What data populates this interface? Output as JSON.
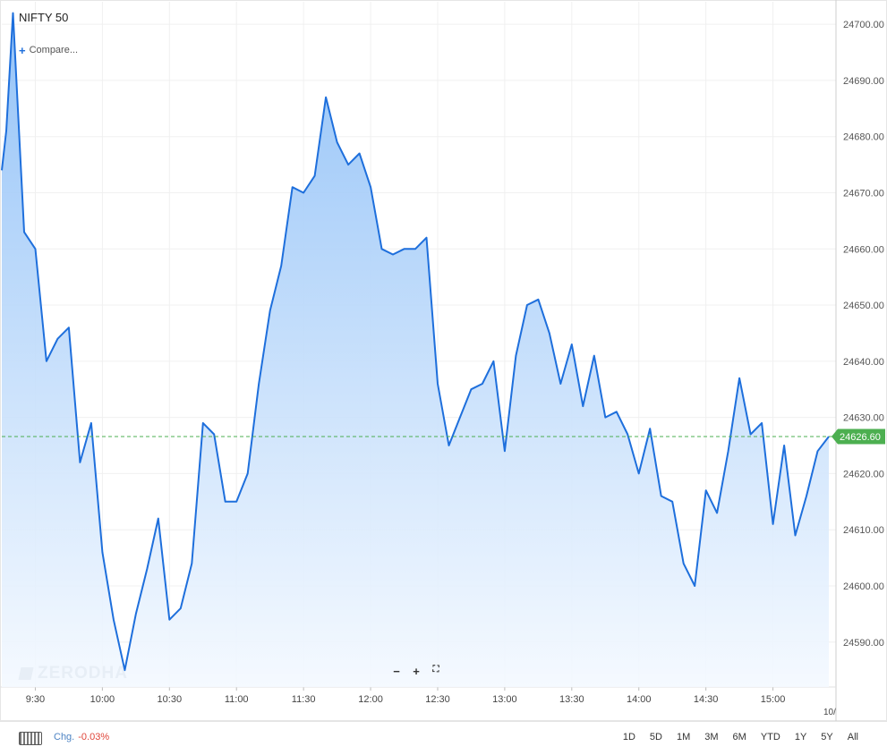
{
  "header": {
    "title": "NIFTY 50",
    "compare_label": "Compare..."
  },
  "watermark": "ZERODHA",
  "zoom_controls": [
    "−",
    "+",
    "⛶"
  ],
  "footer": {
    "chg_label": "Chg.",
    "chg_value": "-0.03%",
    "ranges": [
      "1D",
      "5D",
      "1M",
      "3M",
      "6M",
      "YTD",
      "1Y",
      "5Y",
      "All"
    ]
  },
  "colors": {
    "line": "#1e6fdc",
    "fill_top": "#8fc0f7",
    "fill_bottom": "#f4f9ff",
    "last_price": "#4caf50",
    "grid": "#f0f0f0",
    "change_negative": "#e0453a"
  },
  "chart_data": {
    "type": "area",
    "series": [
      {
        "values": [
          {
            "t": "9:15",
            "y": 24674
          },
          {
            "t": "9:17",
            "y": 24681
          },
          {
            "t": "9:20",
            "y": 24702
          },
          {
            "t": "9:25",
            "y": 24663
          },
          {
            "t": "9:30",
            "y": 24660
          },
          {
            "t": "9:35",
            "y": 24640
          },
          {
            "t": "9:40",
            "y": 24644
          },
          {
            "t": "9:45",
            "y": 24646
          },
          {
            "t": "9:50",
            "y": 24622
          },
          {
            "t": "9:55",
            "y": 24629
          },
          {
            "t": "10:00",
            "y": 24606
          },
          {
            "t": "10:05",
            "y": 24594
          },
          {
            "t": "10:10",
            "y": 24585
          },
          {
            "t": "10:15",
            "y": 24595
          },
          {
            "t": "10:20",
            "y": 24603
          },
          {
            "t": "10:25",
            "y": 24612
          },
          {
            "t": "10:30",
            "y": 24594
          },
          {
            "t": "10:35",
            "y": 24596
          },
          {
            "t": "10:40",
            "y": 24604
          },
          {
            "t": "10:45",
            "y": 24629
          },
          {
            "t": "10:50",
            "y": 24627
          },
          {
            "t": "10:55",
            "y": 24615
          },
          {
            "t": "11:00",
            "y": 24615
          },
          {
            "t": "11:05",
            "y": 24620
          },
          {
            "t": "11:10",
            "y": 24636
          },
          {
            "t": "11:15",
            "y": 24649
          },
          {
            "t": "11:20",
            "y": 24657
          },
          {
            "t": "11:25",
            "y": 24671
          },
          {
            "t": "11:30",
            "y": 24670
          },
          {
            "t": "11:35",
            "y": 24673
          },
          {
            "t": "11:40",
            "y": 24687
          },
          {
            "t": "11:45",
            "y": 24679
          },
          {
            "t": "11:50",
            "y": 24675
          },
          {
            "t": "11:55",
            "y": 24677
          },
          {
            "t": "12:00",
            "y": 24671
          },
          {
            "t": "12:05",
            "y": 24660
          },
          {
            "t": "12:10",
            "y": 24659
          },
          {
            "t": "12:15",
            "y": 24660
          },
          {
            "t": "12:20",
            "y": 24660
          },
          {
            "t": "12:25",
            "y": 24662
          },
          {
            "t": "12:30",
            "y": 24636
          },
          {
            "t": "12:35",
            "y": 24625
          },
          {
            "t": "12:40",
            "y": 24630
          },
          {
            "t": "12:45",
            "y": 24635
          },
          {
            "t": "12:50",
            "y": 24636
          },
          {
            "t": "12:55",
            "y": 24640
          },
          {
            "t": "13:00",
            "y": 24624
          },
          {
            "t": "13:05",
            "y": 24641
          },
          {
            "t": "13:10",
            "y": 24650
          },
          {
            "t": "13:15",
            "y": 24651
          },
          {
            "t": "13:20",
            "y": 24645
          },
          {
            "t": "13:25",
            "y": 24636
          },
          {
            "t": "13:30",
            "y": 24643
          },
          {
            "t": "13:35",
            "y": 24632
          },
          {
            "t": "13:40",
            "y": 24641
          },
          {
            "t": "13:45",
            "y": 24630
          },
          {
            "t": "13:50",
            "y": 24631
          },
          {
            "t": "13:55",
            "y": 24627
          },
          {
            "t": "14:00",
            "y": 24620
          },
          {
            "t": "14:05",
            "y": 24628
          },
          {
            "t": "14:10",
            "y": 24616
          },
          {
            "t": "14:15",
            "y": 24615
          },
          {
            "t": "14:20",
            "y": 24604
          },
          {
            "t": "14:25",
            "y": 24600
          },
          {
            "t": "14:30",
            "y": 24617
          },
          {
            "t": "14:35",
            "y": 24613
          },
          {
            "t": "14:40",
            "y": 24624
          },
          {
            "t": "14:45",
            "y": 24637
          },
          {
            "t": "14:50",
            "y": 24627
          },
          {
            "t": "14:55",
            "y": 24629
          },
          {
            "t": "15:00",
            "y": 24611
          },
          {
            "t": "15:05",
            "y": 24625
          },
          {
            "t": "15:10",
            "y": 24609
          },
          {
            "t": "15:15",
            "y": 24616
          },
          {
            "t": "15:20",
            "y": 24624
          },
          {
            "t": "15:25",
            "y": 24626.6
          }
        ]
      }
    ],
    "last_price": 24626.6,
    "last_price_label": "24626.60",
    "x_tick_labels": [
      "9:30",
      "10:00",
      "10:30",
      "11:00",
      "11:30",
      "12:00",
      "12:30",
      "13:00",
      "13:30",
      "14:00",
      "14:30",
      "15:00"
    ],
    "x_tick_times": [
      "9:30",
      "10:00",
      "10:30",
      "11:00",
      "11:30",
      "12:00",
      "12:30",
      "13:00",
      "13:30",
      "14:00",
      "14:30",
      "15:00"
    ],
    "x_date_label": "10/",
    "x_range": [
      "9:15",
      "15:30"
    ],
    "y_ticks": [
      24590,
      24600,
      24610,
      24620,
      24630,
      24640,
      24650,
      24660,
      24670,
      24680,
      24690,
      24700
    ],
    "y_tick_labels": [
      "24590.00",
      "24600.00",
      "24610.00",
      "24620.00",
      "24630.00",
      "24640.00",
      "24650.00",
      "24660.00",
      "24670.00",
      "24680.00",
      "24690.00",
      "24700.00"
    ],
    "ylim": [
      24582,
      24704
    ],
    "grid": true,
    "y_axis_position": "right"
  }
}
